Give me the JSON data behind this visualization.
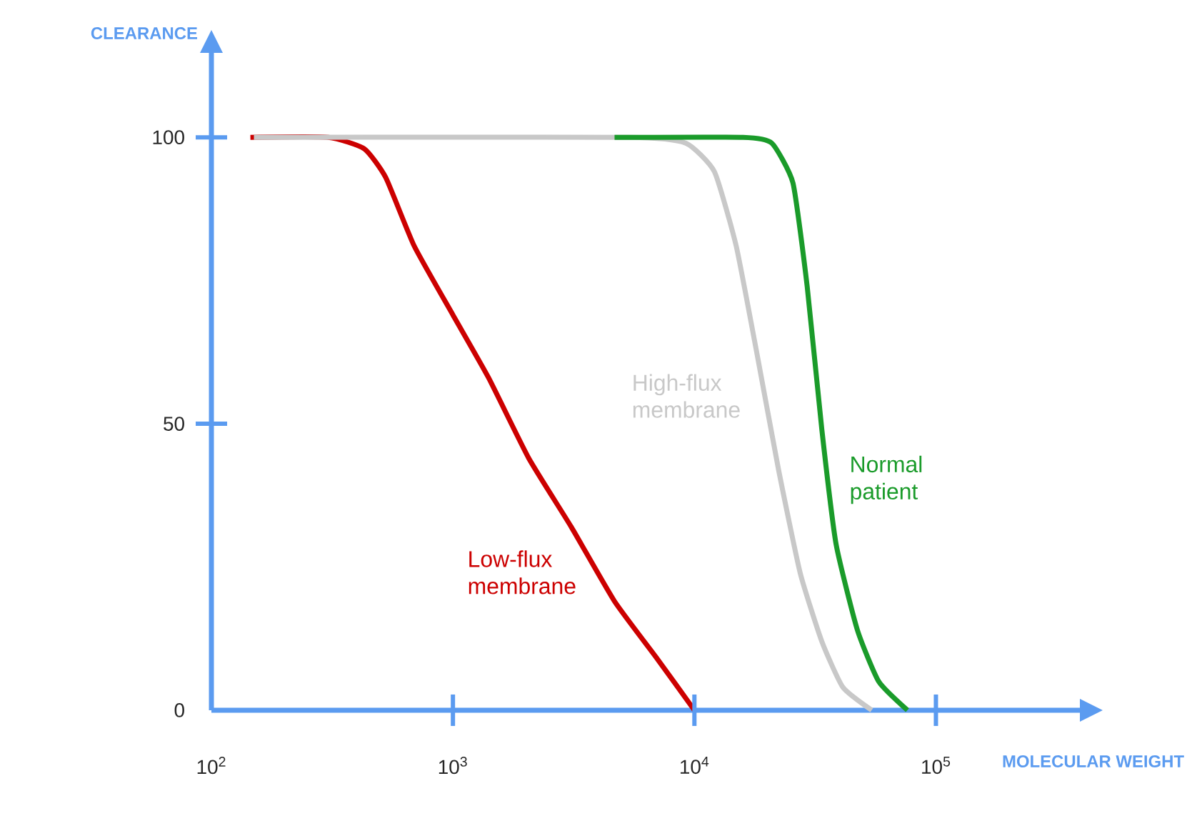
{
  "chart_data": {
    "type": "line",
    "xlabel": "MOLECULAR WEIGHT",
    "ylabel": "CLEARANCE",
    "log": "x",
    "grid": false,
    "marker": "none",
    "line_style": "solid",
    "xlim": [
      100,
      400000
    ],
    "ylim": [
      0,
      115
    ],
    "xticks": [
      {
        "value": 100,
        "label": "10$^{2}$"
      },
      {
        "value": 1000,
        "label": "10$^{3}$"
      },
      {
        "value": 10000,
        "label": "10$^{4}$"
      },
      {
        "value": 100000,
        "label": "10$^{5}$"
      }
    ],
    "yticks": [
      0,
      50,
      100
    ],
    "series": [
      {
        "name": "Low-flux membrane",
        "color": "#cc0000",
        "x": [
          145,
          305,
          430,
          527,
          692,
          1000,
          1406,
          2060,
          3090,
          4670,
          7010,
          10000
        ],
        "values": [
          100,
          100,
          98,
          93,
          81,
          69,
          58,
          44,
          32,
          19,
          9,
          0
        ]
      },
      {
        "name": "High-flux membrane",
        "color": "#c8c8c8",
        "x": [
          150,
          5350,
          9200,
          12100,
          14900,
          18200,
          22300,
          27400,
          33700,
          41200,
          54200
        ],
        "values": [
          100,
          100,
          99,
          94,
          81,
          62,
          42,
          24,
          12,
          4,
          0
        ]
      },
      {
        "name": "Normal patient",
        "color": "#1a9b2a",
        "x": [
          4670,
          15900,
          20900,
          25600,
          29300,
          33700,
          38600,
          47300,
          58000,
          76200
        ],
        "values": [
          100,
          100,
          99,
          92,
          74,
          49,
          29,
          14,
          5,
          0
        ]
      }
    ]
  }
}
